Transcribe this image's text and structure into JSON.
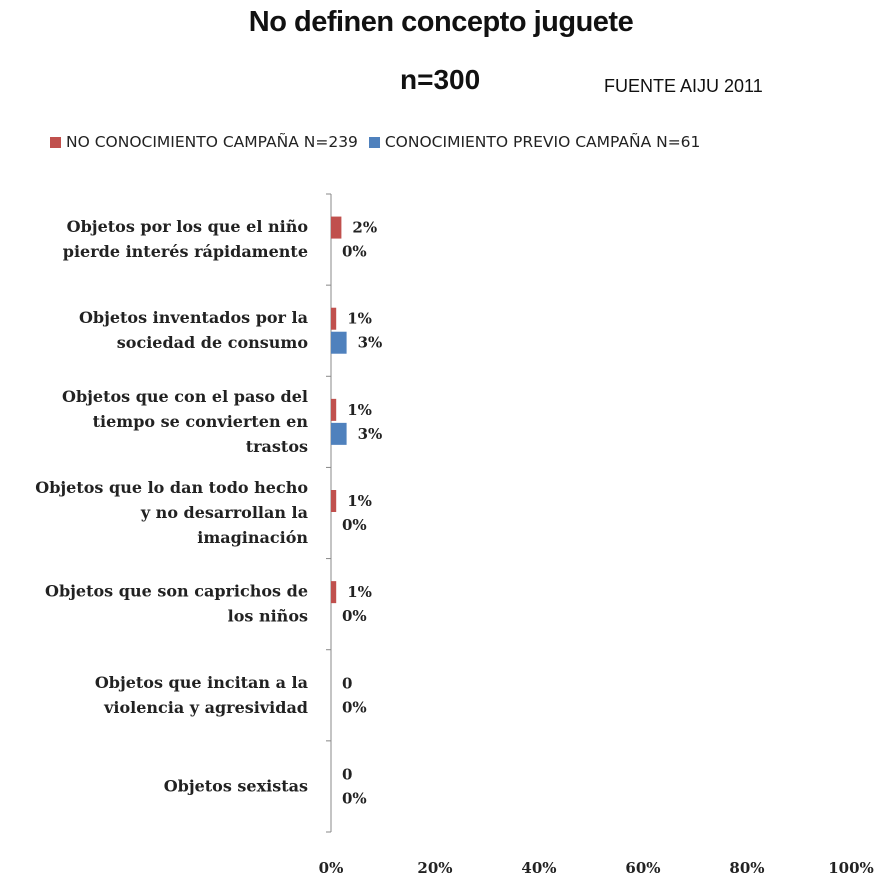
{
  "chart_data": {
    "type": "bar",
    "orientation": "horizontal",
    "title": "No definen concepto juguete",
    "subtitle": "n=300",
    "source": "FUENTE AIJU 2011",
    "categories": [
      [
        "Objetos por los que el niño",
        "pierde interés rápidamente"
      ],
      [
        "Objetos inventados por la",
        "sociedad de consumo"
      ],
      [
        "Objetos que con el paso del",
        "tiempo se convierten en",
        "trastos"
      ],
      [
        "Objetos que lo dan todo hecho",
        "y no desarrollan la",
        "imaginación"
      ],
      [
        "Objetos que son caprichos de",
        "los niños"
      ],
      [
        "Objetos que incitan a la",
        "violencia y agresividad"
      ],
      [
        "Objetos sexistas"
      ]
    ],
    "series": [
      {
        "name": "NO CONOCIMIENTO CAMPAÑA N=239",
        "color": "#c0504d",
        "values": [
          2,
          1,
          1,
          1,
          1,
          0,
          0
        ],
        "labels": [
          "2%",
          "1%",
          "1%",
          "1%",
          "1%",
          "0",
          "0"
        ]
      },
      {
        "name": "CONOCIMIENTO PREVIO CAMPAÑA N=61",
        "color": "#4f81bd",
        "values": [
          0,
          3,
          3,
          0,
          0,
          0,
          0
        ],
        "labels": [
          "0%",
          "3%",
          "3%",
          "0%",
          "0%",
          "0%",
          "0%"
        ]
      }
    ],
    "xlim": [
      0,
      100
    ],
    "xticks": [
      "0%",
      "20%",
      "40%",
      "60%",
      "80%",
      "100%"
    ],
    "grid": false,
    "legend_position": "top"
  }
}
